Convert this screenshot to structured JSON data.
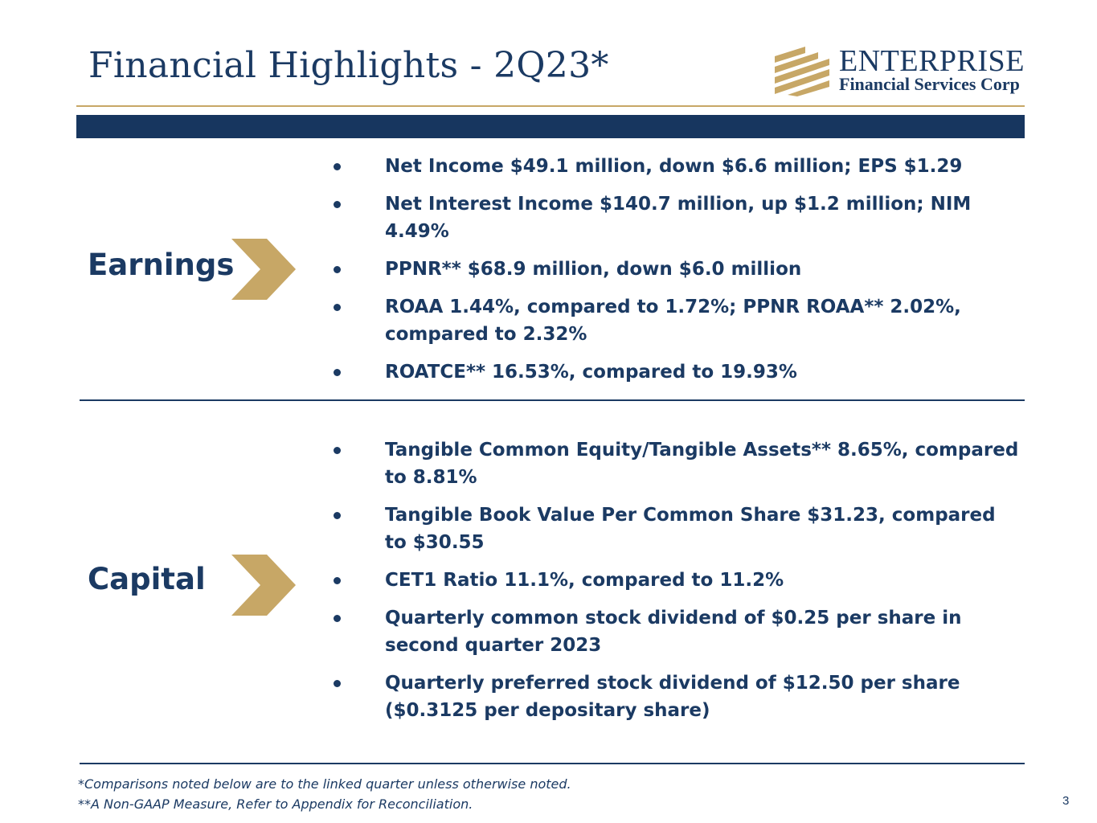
{
  "header": {
    "title": "Financial Highlights - 2Q23*",
    "logo": {
      "name": "ENTERPRISE",
      "subtitle": "Financial Services Corp",
      "icon": "enterprise-stripes-logo-icon"
    }
  },
  "colors": {
    "navy": "#17365f",
    "gold": "#c7a766"
  },
  "sections": [
    {
      "label": "Earnings",
      "bullets": [
        "Net Income $49.1 million, down $6.6 million; EPS $1.29",
        "Net Interest Income $140.7 million, up $1.2 million; NIM 4.49%",
        "PPNR** $68.9 million, down $6.0 million",
        "ROAA 1.44%, compared to 1.72%; PPNR ROAA** 2.02%, compared to 2.32%",
        "ROATCE** 16.53%, compared to 19.93%"
      ]
    },
    {
      "label": "Capital",
      "bullets": [
        "Tangible Common Equity/Tangible Assets** 8.65%, compared to 8.81%",
        "Tangible Book Value Per Common Share $31.23, compared to $30.55",
        "CET1 Ratio 11.1%, compared to 11.2%",
        "Quarterly common stock dividend of $0.25 per share in second quarter 2023",
        "Quarterly preferred stock dividend of $12.50 per share ($0.3125 per depositary share)"
      ]
    }
  ],
  "footnotes": [
    "*Comparisons noted below are to the linked quarter unless otherwise noted.",
    "**A Non-GAAP Measure, Refer to Appendix for Reconciliation."
  ],
  "page_number": "3"
}
